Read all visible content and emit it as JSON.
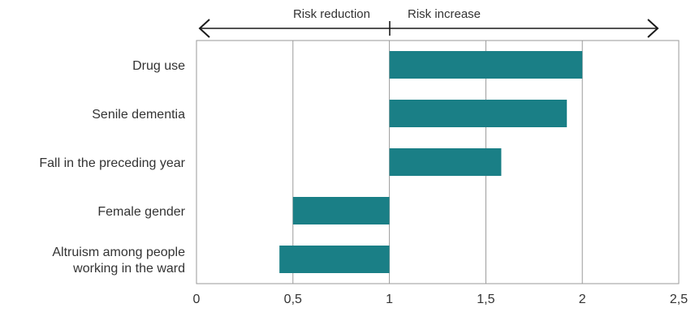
{
  "chart_data": {
    "type": "bar",
    "orientation": "horizontal",
    "baseline": 1,
    "categories": [
      [
        "Drug use"
      ],
      [
        "Senile dementia"
      ],
      [
        "Fall in the preceding year"
      ],
      [
        "Female gender"
      ],
      [
        "Altruism among people",
        "working in the ward"
      ]
    ],
    "values": [
      2.0,
      1.92,
      1.58,
      0.5,
      0.43
    ],
    "xlim": [
      0,
      2.5
    ],
    "xticks": [
      {
        "value": 0,
        "label": "0"
      },
      {
        "value": 0.5,
        "label": "0,5"
      },
      {
        "value": 1,
        "label": "1"
      },
      {
        "value": 1.5,
        "label": "1,5"
      },
      {
        "value": 2,
        "label": "2"
      },
      {
        "value": 2.5,
        "label": "2,5"
      }
    ],
    "direction_labels": {
      "left": "Risk reduction",
      "right": "Risk increase"
    },
    "grid": "vertical",
    "colors": {
      "bar": "#1a7f86",
      "grid": "#9a9a9a",
      "arrow": "#1a1a1a"
    }
  }
}
